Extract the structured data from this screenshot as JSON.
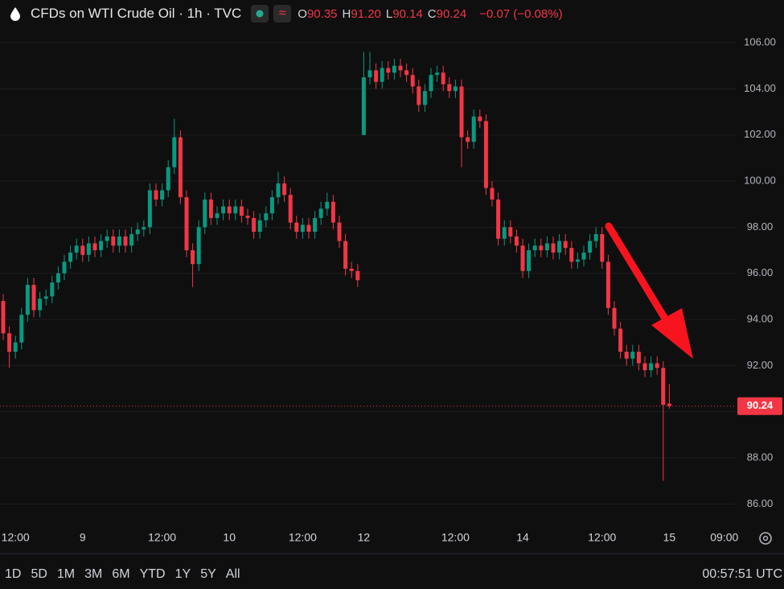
{
  "chart_data": {
    "type": "candlestick",
    "title": "CFDs on WTI Crude Oil · 1h · TVC",
    "ohlc_legend": [
      {
        "label": "O",
        "value": "90.35"
      },
      {
        "label": "H",
        "value": "91.20"
      },
      {
        "label": "L",
        "value": "90.14"
      },
      {
        "label": "C",
        "value": "90.24"
      }
    ],
    "change": "−0.07 (−0.08%)",
    "up_color": "#089981",
    "down_color": "#f23645",
    "categories": [
      null,
      null,
      "12:00",
      null,
      null,
      null,
      null,
      null,
      null,
      null,
      null,
      null,
      null,
      "9",
      null,
      null,
      null,
      null,
      null,
      null,
      null,
      null,
      null,
      null,
      null,
      null,
      "12:00",
      null,
      null,
      null,
      null,
      null,
      null,
      null,
      null,
      null,
      null,
      "10",
      null,
      null,
      null,
      null,
      null,
      null,
      null,
      null,
      null,
      null,
      null,
      "12:00",
      null,
      null,
      null,
      null,
      null,
      null,
      null,
      null,
      null,
      "12",
      null,
      null,
      null,
      null,
      null,
      null,
      null,
      null,
      null,
      null,
      null,
      null,
      null,
      null,
      "12:00",
      null,
      null,
      null,
      null,
      null,
      null,
      null,
      null,
      null,
      null,
      "14",
      null,
      null,
      null,
      null,
      null,
      null,
      null,
      null,
      null,
      null,
      null,
      null,
      "12:00",
      null,
      null,
      null,
      null,
      null,
      null,
      null,
      null,
      null,
      null,
      "15",
      null,
      null,
      null,
      null,
      null,
      null,
      null,
      null,
      "09:00",
      null
    ],
    "open": [
      94.8,
      93.4,
      92.6,
      93.0,
      94.2,
      95.5,
      94.4,
      94.9,
      95.0,
      95.6,
      96.0,
      96.5,
      96.9,
      97.2,
      96.8,
      97.3,
      97.0,
      97.4,
      97.6,
      97.2,
      97.6,
      97.2,
      97.7,
      97.9,
      98.0,
      99.6,
      99.2,
      99.6,
      100.6,
      101.9,
      99.3,
      97.0,
      96.4,
      98.0,
      99.2,
      98.4,
      98.6,
      98.9,
      98.6,
      98.9,
      98.5,
      98.4,
      97.8,
      98.3,
      98.6,
      99.3,
      99.9,
      99.4,
      98.2,
      97.8,
      98.1,
      97.8,
      98.4,
      98.8,
      99.1,
      98.2,
      97.4,
      96.2,
      96.1,
      102.0,
      104.5,
      104.8,
      104.3,
      104.9,
      104.7,
      105.0,
      104.8,
      104.6,
      104.1,
      103.3,
      103.9,
      104.6,
      104.7,
      104.2,
      103.9,
      104.1,
      101.9,
      101.7,
      102.8,
      102.6,
      99.7,
      99.2,
      97.5,
      98.0,
      97.6,
      97.2,
      96.1,
      97.0,
      97.2,
      97.0,
      97.3,
      96.9,
      97.4,
      97.1,
      96.5,
      96.6,
      96.9,
      97.4,
      97.7,
      96.5,
      94.5,
      93.6,
      92.6,
      92.3,
      92.6,
      92.1,
      91.8,
      92.1,
      91.9,
      90.35,
      null,
      null,
      null,
      null,
      null,
      null,
      null,
      null,
      null,
      null
    ],
    "high": [
      95.1,
      93.7,
      93.3,
      94.5,
      95.8,
      95.8,
      95.2,
      95.3,
      95.9,
      96.3,
      96.8,
      97.2,
      97.5,
      97.5,
      97.6,
      97.6,
      97.7,
      97.9,
      97.9,
      97.9,
      97.9,
      98.0,
      98.2,
      98.3,
      99.9,
      99.9,
      99.9,
      100.9,
      102.7,
      102.2,
      99.6,
      97.3,
      98.3,
      99.5,
      99.5,
      98.9,
      99.2,
      99.2,
      99.2,
      99.2,
      98.8,
      98.7,
      98.6,
      98.9,
      99.6,
      100.4,
      100.2,
      99.7,
      98.5,
      98.4,
      98.4,
      98.7,
      99.1,
      99.5,
      99.4,
      98.5,
      97.7,
      96.5,
      96.4,
      105.6,
      105.6,
      105.1,
      105.2,
      105.2,
      105.3,
      105.3,
      105.1,
      104.9,
      104.4,
      104.2,
      104.9,
      105.0,
      105.0,
      104.5,
      104.4,
      104.4,
      102.2,
      103.1,
      103.1,
      102.9,
      100.0,
      99.5,
      98.3,
      98.3,
      97.9,
      97.5,
      97.3,
      97.5,
      97.5,
      97.6,
      97.6,
      97.7,
      97.7,
      97.4,
      96.9,
      97.2,
      97.7,
      98.0,
      98.0,
      96.8,
      94.8,
      93.9,
      92.9,
      92.9,
      92.9,
      92.4,
      92.4,
      92.4,
      92.2,
      91.2,
      null,
      null,
      null,
      null,
      null,
      null,
      null,
      null,
      null,
      null
    ],
    "low": [
      93.1,
      91.9,
      92.3,
      92.7,
      93.9,
      94.1,
      94.1,
      94.6,
      94.7,
      95.3,
      95.7,
      96.2,
      96.6,
      96.5,
      96.5,
      96.7,
      96.7,
      97.1,
      96.9,
      96.9,
      96.9,
      96.9,
      97.4,
      97.6,
      97.7,
      98.9,
      98.9,
      99.3,
      100.3,
      99.0,
      96.7,
      95.4,
      96.1,
      97.7,
      98.1,
      98.1,
      98.3,
      98.3,
      98.3,
      98.2,
      98.1,
      97.5,
      97.5,
      98.0,
      98.3,
      99.0,
      99.1,
      97.9,
      97.5,
      97.5,
      97.5,
      97.5,
      98.1,
      98.5,
      97.9,
      97.1,
      95.9,
      95.8,
      95.4,
      102.0,
      104.2,
      104.0,
      104.0,
      104.4,
      104.4,
      104.5,
      104.3,
      103.8,
      103.0,
      103.0,
      103.6,
      104.3,
      103.9,
      103.6,
      103.6,
      100.6,
      101.4,
      101.4,
      102.3,
      99.4,
      98.9,
      97.2,
      97.2,
      97.3,
      96.9,
      95.8,
      95.8,
      96.7,
      96.7,
      96.7,
      96.6,
      96.6,
      96.8,
      96.2,
      96.2,
      96.3,
      96.6,
      97.1,
      96.2,
      94.2,
      93.3,
      92.3,
      92.0,
      92.0,
      91.8,
      91.5,
      91.5,
      91.6,
      87.0,
      90.14,
      null,
      null,
      null,
      null,
      null,
      null,
      null,
      null,
      null,
      null
    ],
    "close": [
      93.4,
      92.6,
      93.0,
      94.2,
      95.5,
      94.4,
      94.9,
      95.0,
      95.6,
      96.0,
      96.5,
      96.9,
      97.2,
      96.8,
      97.3,
      97.0,
      97.4,
      97.6,
      97.2,
      97.6,
      97.2,
      97.7,
      97.9,
      98.0,
      99.6,
      99.2,
      99.6,
      100.6,
      101.9,
      99.3,
      97.0,
      96.4,
      98.0,
      99.2,
      98.4,
      98.6,
      98.9,
      98.6,
      98.9,
      98.5,
      98.4,
      97.8,
      98.3,
      98.6,
      99.3,
      99.9,
      99.4,
      98.2,
      97.8,
      98.1,
      97.8,
      98.4,
      98.8,
      99.1,
      98.2,
      97.4,
      96.2,
      96.1,
      95.7,
      104.5,
      104.8,
      104.3,
      104.9,
      104.7,
      105.0,
      104.8,
      104.6,
      104.1,
      103.3,
      103.9,
      104.6,
      104.7,
      104.2,
      103.9,
      104.1,
      101.9,
      101.7,
      102.8,
      102.6,
      99.7,
      99.2,
      97.5,
      98.0,
      97.6,
      97.2,
      96.1,
      97.0,
      97.2,
      97.0,
      97.3,
      96.9,
      97.4,
      97.1,
      96.5,
      96.6,
      96.9,
      97.4,
      97.7,
      96.5,
      94.5,
      93.6,
      92.6,
      92.3,
      92.6,
      92.1,
      91.8,
      92.1,
      91.9,
      90.3,
      90.24,
      null,
      null,
      null,
      null,
      null,
      null,
      null,
      null,
      null,
      null
    ],
    "ylim": [
      85.0,
      107.85
    ],
    "yticks": [
      {
        "value": 86,
        "label": "86.00"
      },
      {
        "value": 88,
        "label": "88.00"
      },
      {
        "value": 90,
        "label": "90.00"
      },
      {
        "value": 92,
        "label": "92.00"
      },
      {
        "value": 94,
        "label": "94.00"
      },
      {
        "value": 96,
        "label": "96.00"
      },
      {
        "value": 98,
        "label": "98.00"
      },
      {
        "value": 100,
        "label": "100.00"
      },
      {
        "value": 102,
        "label": "102.00"
      },
      {
        "value": 104,
        "label": "104.00"
      },
      {
        "value": 106,
        "label": "106.00"
      }
    ],
    "grid": true,
    "last_price": {
      "value": 90.24,
      "label": "90.24"
    }
  },
  "toolbar": {
    "ranges": [
      "1D",
      "5D",
      "1M",
      "3M",
      "6M",
      "YTD",
      "1Y",
      "5Y",
      "All"
    ],
    "clock": "00:57:51 UTC"
  }
}
